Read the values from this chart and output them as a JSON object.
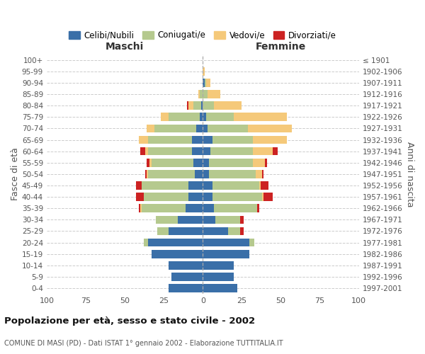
{
  "age_groups": [
    "0-4",
    "5-9",
    "10-14",
    "15-19",
    "20-24",
    "25-29",
    "30-34",
    "35-39",
    "40-44",
    "45-49",
    "50-54",
    "55-59",
    "60-64",
    "65-69",
    "70-74",
    "75-79",
    "80-84",
    "85-89",
    "90-94",
    "95-99",
    "100+"
  ],
  "birth_years": [
    "1997-2001",
    "1992-1996",
    "1987-1991",
    "1982-1986",
    "1977-1981",
    "1972-1976",
    "1967-1971",
    "1962-1966",
    "1957-1961",
    "1952-1956",
    "1947-1951",
    "1942-1946",
    "1937-1941",
    "1932-1936",
    "1927-1931",
    "1922-1926",
    "1917-1921",
    "1912-1916",
    "1907-1911",
    "1902-1906",
    "≤ 1901"
  ],
  "maschi": {
    "celibi": [
      22,
      20,
      22,
      33,
      35,
      22,
      16,
      11,
      9,
      9,
      5,
      6,
      7,
      7,
      4,
      2,
      1,
      0,
      0,
      0,
      0
    ],
    "coniugati": [
      0,
      0,
      0,
      0,
      3,
      7,
      14,
      28,
      29,
      30,
      30,
      27,
      28,
      28,
      27,
      20,
      5,
      2,
      0,
      0,
      0
    ],
    "vedovi": [
      0,
      0,
      0,
      0,
      0,
      0,
      0,
      1,
      0,
      0,
      1,
      1,
      2,
      6,
      5,
      5,
      3,
      1,
      0,
      0,
      0
    ],
    "divorziati": [
      0,
      0,
      0,
      0,
      0,
      0,
      0,
      1,
      5,
      4,
      1,
      2,
      3,
      0,
      0,
      0,
      1,
      0,
      0,
      0,
      0
    ]
  },
  "femmine": {
    "nubili": [
      22,
      20,
      20,
      30,
      30,
      16,
      8,
      7,
      6,
      6,
      4,
      4,
      5,
      6,
      3,
      2,
      0,
      0,
      1,
      0,
      0
    ],
    "coniugate": [
      0,
      0,
      0,
      0,
      3,
      8,
      16,
      28,
      32,
      30,
      30,
      28,
      27,
      26,
      26,
      18,
      7,
      3,
      1,
      0,
      0
    ],
    "vedove": [
      0,
      0,
      0,
      0,
      0,
      0,
      0,
      0,
      1,
      1,
      4,
      8,
      13,
      22,
      28,
      34,
      18,
      8,
      3,
      1,
      0
    ],
    "divorziate": [
      0,
      0,
      0,
      0,
      0,
      2,
      2,
      1,
      6,
      5,
      1,
      1,
      3,
      0,
      0,
      0,
      0,
      0,
      0,
      0,
      0
    ]
  },
  "colors": {
    "celibi": "#3a6fa8",
    "coniugati": "#b5c98e",
    "vedovi": "#f5c97a",
    "divorziati": "#cc2222"
  },
  "xlim": 100,
  "title": "Popolazione per età, sesso e stato civile - 2002",
  "subtitle": "COMUNE DI MASI (PD) - Dati ISTAT 1° gennaio 2002 - Elaborazione TUTTITALIA.IT",
  "ylabel_left": "Fasce di età",
  "ylabel_right": "Anni di nascita",
  "xlabel_maschi": "Maschi",
  "xlabel_femmine": "Femmine",
  "legend_labels": [
    "Celibi/Nubili",
    "Coniugati/e",
    "Vedovi/e",
    "Divorziati/e"
  ]
}
